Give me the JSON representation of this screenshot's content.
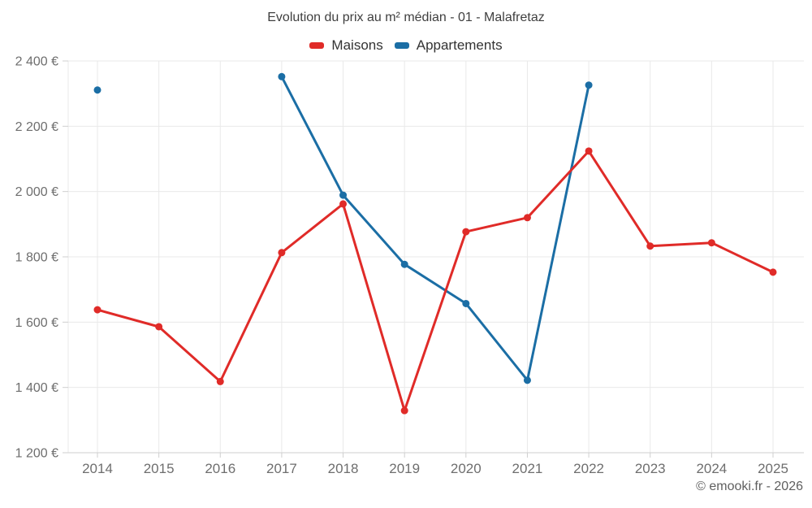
{
  "footer": {
    "copyright": "© emooki.fr - 2026"
  },
  "chart_data": {
    "type": "line",
    "title": "Evolution du prix au m² médian - 01 - Malafretaz",
    "categories": [
      "2014",
      "2015",
      "2016",
      "2017",
      "2018",
      "2019",
      "2020",
      "2021",
      "2022",
      "2023",
      "2024",
      "2025"
    ],
    "series": [
      {
        "name": "Maisons",
        "color": "#e02b28",
        "values": [
          1638,
          1586,
          1418,
          1813,
          1962,
          1329,
          1877,
          1920,
          2124,
          1833,
          1843,
          1753
        ]
      },
      {
        "name": "Appartements",
        "color": "#1b6ea5",
        "values": [
          2311,
          null,
          null,
          2352,
          1989,
          1777,
          1657,
          1422,
          2326,
          null,
          null,
          null
        ]
      }
    ],
    "ylim": [
      1200,
      2400
    ],
    "ytick_step": 200,
    "ytick_labels": [
      "1 200 €",
      "1 400 €",
      "1 600 €",
      "1 800 €",
      "2 000 €",
      "2 200 €",
      "2 400 €"
    ],
    "xlabel": "",
    "ylabel": "",
    "grid": true,
    "legend_position": "top",
    "marker": "circle"
  }
}
